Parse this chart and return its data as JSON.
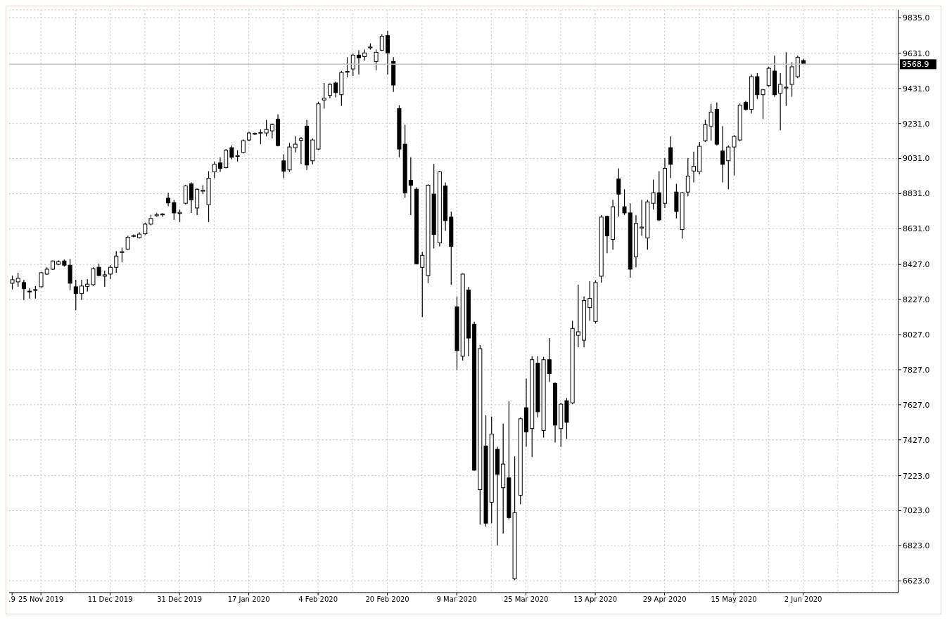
{
  "chart_data": {
    "type": "candlestick",
    "color": "#000000",
    "grid": true,
    "categories": [
      ".9",
      null,
      null,
      null,
      null,
      "25 Nov 2019",
      null,
      null,
      null,
      null,
      null,
      null,
      null,
      null,
      null,
      null,
      null,
      "11 Dec 2019",
      null,
      null,
      null,
      null,
      null,
      null,
      null,
      null,
      null,
      null,
      null,
      "31 Dec 2019",
      null,
      null,
      null,
      null,
      null,
      null,
      null,
      null,
      null,
      null,
      null,
      "17 Jan 2020",
      null,
      null,
      null,
      null,
      null,
      null,
      null,
      null,
      null,
      null,
      null,
      "4 Feb 2020",
      null,
      null,
      null,
      null,
      null,
      null,
      null,
      null,
      null,
      null,
      null,
      "20 Feb 2020",
      null,
      null,
      null,
      null,
      null,
      null,
      null,
      null,
      null,
      null,
      null,
      "9 Mar 2020",
      null,
      null,
      null,
      null,
      null,
      null,
      null,
      null,
      null,
      null,
      null,
      "25 Mar 2020",
      null,
      null,
      null,
      null,
      null,
      null,
      null,
      null,
      null,
      null,
      null,
      "13 Apr 2020",
      null,
      null,
      null,
      null,
      null,
      null,
      null,
      null,
      null,
      null,
      null,
      "29 Apr 2020",
      null,
      null,
      null,
      null,
      null,
      null,
      null,
      null,
      null,
      null,
      null,
      "15 May 2020",
      null,
      null,
      null,
      null,
      null,
      null,
      null,
      null,
      null,
      null,
      null,
      "2 Jun 2020",
      null,
      null,
      null,
      null,
      null,
      null,
      null,
      null,
      null,
      null,
      null,
      null,
      null,
      null,
      null,
      null
    ],
    "ohlc": [
      [
        8320,
        8364,
        8285,
        8340
      ],
      [
        8328,
        8380,
        8300,
        8348
      ],
      [
        8324,
        8340,
        8225,
        8289
      ],
      [
        8275,
        8293,
        8233,
        8272
      ],
      [
        8280,
        8304,
        8233,
        8284
      ],
      [
        8300,
        8385,
        8296,
        8380
      ],
      [
        8372,
        8411,
        8368,
        8400
      ],
      [
        8400,
        8450,
        8396,
        8447
      ],
      [
        8428,
        8450,
        8423,
        8442
      ],
      [
        8447,
        8455,
        8415,
        8423
      ],
      [
        8423,
        8459,
        8281,
        8320
      ],
      [
        8300,
        8340,
        8166,
        8261
      ],
      [
        8261,
        8340,
        8225,
        8304
      ],
      [
        8302,
        8344,
        8273,
        8315
      ],
      [
        8312,
        8411,
        8304,
        8403
      ],
      [
        8411,
        8431,
        8360,
        8364
      ],
      [
        8360,
        8392,
        8300,
        8368
      ],
      [
        8372,
        8423,
        8344,
        8411
      ],
      [
        8411,
        8503,
        8380,
        8475
      ],
      [
        8495,
        8523,
        8439,
        8500
      ],
      [
        8515,
        8590,
        8511,
        8582
      ],
      [
        8588,
        8598,
        8582,
        8592
      ],
      [
        8580,
        8610,
        8575,
        8600
      ],
      [
        8602,
        8665,
        8595,
        8657
      ],
      [
        8657,
        8710,
        8650,
        8689
      ],
      [
        8705,
        8720,
        8700,
        8712
      ],
      [
        8710,
        8720,
        8700,
        8715
      ],
      [
        8805,
        8836,
        8760,
        8778
      ],
      [
        8780,
        8796,
        8681,
        8721
      ],
      [
        8718,
        8740,
        8669,
        8724
      ],
      [
        8776,
        8880,
        8770,
        8875
      ],
      [
        8887,
        8895,
        8721,
        8796
      ],
      [
        8749,
        8860,
        8709,
        8856
      ],
      [
        8845,
        8879,
        8828,
        8850
      ],
      [
        8768,
        8959,
        8669,
        8919
      ],
      [
        8955,
        9014,
        8919,
        8998
      ],
      [
        9006,
        9038,
        8955,
        8975
      ],
      [
        8979,
        9085,
        8975,
        9078
      ],
      [
        9093,
        9105,
        9026,
        9038
      ],
      [
        9043,
        9078,
        9014,
        9048
      ],
      [
        9066,
        9140,
        9060,
        9133
      ],
      [
        9137,
        9185,
        9130,
        9177
      ],
      [
        9170,
        9180,
        9165,
        9175
      ],
      [
        9175,
        9197,
        9113,
        9180
      ],
      [
        9177,
        9252,
        9157,
        9197
      ],
      [
        9189,
        9232,
        9145,
        9224
      ],
      [
        9256,
        9284,
        9100,
        9105
      ],
      [
        9018,
        9054,
        8919,
        8959
      ],
      [
        8966,
        9120,
        8955,
        9097
      ],
      [
        9093,
        9157,
        9066,
        9113
      ],
      [
        9135,
        9153,
        9000,
        9145
      ],
      [
        9216,
        9252,
        8966,
        8994
      ],
      [
        9018,
        9145,
        8998,
        9137
      ],
      [
        9085,
        9355,
        9080,
        9343
      ],
      [
        9365,
        9462,
        9316,
        9375
      ],
      [
        9391,
        9460,
        9375,
        9454
      ],
      [
        9462,
        9470,
        9380,
        9407
      ],
      [
        9395,
        9530,
        9331,
        9522
      ],
      [
        9524,
        9609,
        9494,
        9528
      ],
      [
        9542,
        9629,
        9502,
        9621
      ],
      [
        9621,
        9649,
        9510,
        9605
      ],
      [
        9613,
        9653,
        9589,
        9633
      ],
      [
        9663,
        9688,
        9653,
        9667
      ],
      [
        9585,
        9653,
        9534,
        9637
      ],
      [
        9649,
        9740,
        9645,
        9728
      ],
      [
        9732,
        9760,
        9510,
        9633
      ],
      [
        9585,
        9609,
        9411,
        9450
      ],
      [
        9316,
        9335,
        9038,
        9085
      ],
      [
        9113,
        9224,
        8808,
        8836
      ],
      [
        8907,
        9038,
        8709,
        8879
      ],
      [
        8856,
        8867,
        8427,
        8431
      ],
      [
        8411,
        8499,
        8126,
        8479
      ],
      [
        8364,
        8885,
        8320,
        8879
      ],
      [
        8828,
        9000,
        8518,
        8598
      ],
      [
        8550,
        8960,
        8530,
        8955
      ],
      [
        8875,
        8895,
        8618,
        8677
      ],
      [
        8697,
        8729,
        8312,
        8530
      ],
      [
        8185,
        8245,
        7825,
        7936
      ],
      [
        7904,
        8376,
        7880,
        8372
      ],
      [
        8281,
        8300,
        7904,
        8007
      ],
      [
        8086,
        8100,
        7250,
        7254
      ],
      [
        7143,
        7967,
        6944,
        7947
      ],
      [
        7392,
        7567,
        6932,
        6952
      ],
      [
        7071,
        7559,
        6952,
        7460
      ],
      [
        7373,
        7388,
        6825,
        7230
      ],
      [
        7154,
        7519,
        6893,
        7289
      ],
      [
        7210,
        7646,
        6975,
        6984
      ],
      [
        6635,
        7333,
        6627,
        7012
      ],
      [
        7111,
        7555,
        7060,
        7547
      ],
      [
        7610,
        7777,
        7388,
        7472
      ],
      [
        7491,
        7904,
        7329,
        7884
      ],
      [
        7864,
        7904,
        7555,
        7587
      ],
      [
        7480,
        7900,
        7440,
        7884
      ],
      [
        7884,
        8007,
        7757,
        7805
      ],
      [
        7749,
        7755,
        7412,
        7511
      ],
      [
        7491,
        7638,
        7388,
        7630
      ],
      [
        7650,
        7666,
        7432,
        7527
      ],
      [
        7638,
        8106,
        7630,
        8062
      ],
      [
        8023,
        8312,
        7955,
        8043
      ],
      [
        7995,
        8245,
        7955,
        8221
      ],
      [
        8181,
        8332,
        8106,
        8233
      ],
      [
        8102,
        8336,
        8090,
        8324
      ],
      [
        8360,
        8709,
        8324,
        8697
      ],
      [
        8701,
        8706,
        8491,
        8590
      ],
      [
        8570,
        8796,
        8511,
        8756
      ],
      [
        8915,
        8975,
        8701,
        8828
      ],
      [
        8756,
        8856,
        8709,
        8721
      ],
      [
        8721,
        8776,
        8352,
        8400
      ],
      [
        8471,
        8709,
        8411,
        8661
      ],
      [
        8635,
        8796,
        8590,
        8640
      ],
      [
        8578,
        8796,
        8511,
        8784
      ],
      [
        8776,
        8911,
        8740,
        8836
      ],
      [
        8836,
        8959,
        8673,
        8681
      ],
      [
        8776,
        9034,
        8749,
        8975
      ],
      [
        9093,
        9157,
        8919,
        8998
      ],
      [
        8840,
        8887,
        8689,
        8729
      ],
      [
        8626,
        8840,
        8574,
        8836
      ],
      [
        8840,
        9034,
        8816,
        8931
      ],
      [
        8960,
        9070,
        8895,
        8987
      ],
      [
        8955,
        9125,
        8940,
        9101
      ],
      [
        9133,
        9252,
        9125,
        9224
      ],
      [
        9216,
        9343,
        9133,
        9296
      ],
      [
        9312,
        9351,
        9105,
        9113
      ],
      [
        9074,
        9216,
        8895,
        8998
      ],
      [
        9018,
        9105,
        8856,
        9097
      ],
      [
        9097,
        9165,
        8935,
        9157
      ],
      [
        9137,
        9345,
        9130,
        9335
      ],
      [
        9351,
        9360,
        9305,
        9312
      ],
      [
        9312,
        9510,
        9288,
        9498
      ],
      [
        9498,
        9518,
        9371,
        9395
      ],
      [
        9395,
        9427,
        9256,
        9423
      ],
      [
        9447,
        9554,
        9440,
        9546
      ],
      [
        9530,
        9617,
        9383,
        9395
      ],
      [
        9403,
        9518,
        9193,
        9454
      ],
      [
        9433,
        9637,
        9331,
        9438
      ],
      [
        9454,
        9581,
        9383,
        9554
      ],
      [
        9498,
        9617,
        9490,
        9609
      ],
      [
        9590,
        9600,
        9565,
        9569
      ],
      null,
      null,
      null,
      null,
      null,
      null,
      null,
      null,
      null,
      null,
      null,
      null,
      null,
      null,
      null,
      null
    ],
    "colors": [
      "#ffffff",
      "#ffffff",
      "#000000",
      "#000000",
      "#ffffff",
      "#ffffff",
      "#ffffff",
      "#ffffff",
      "#ffffff",
      "#000000",
      "#000000",
      "#000000",
      "#ffffff",
      "#ffffff",
      "#ffffff",
      "#000000",
      "#ffffff",
      "#ffffff",
      "#ffffff",
      "#ffffff",
      "#ffffff",
      "#ffffff",
      "#ffffff",
      "#ffffff",
      "#ffffff",
      "#ffffff",
      "#ffffff",
      "#000000",
      "#000000",
      "#ffffff",
      "#ffffff",
      "#000000",
      "#ffffff",
      "#ffffff",
      "#ffffff",
      "#ffffff",
      "#000000",
      "#ffffff",
      "#000000",
      "#ffffff",
      "#ffffff",
      "#ffffff",
      "#ffffff",
      "#ffffff",
      "#ffffff",
      "#ffffff",
      "#000000",
      "#000000",
      "#ffffff",
      "#ffffff",
      "#ffffff",
      "#000000",
      "#ffffff",
      "#ffffff",
      "#ffffff",
      "#ffffff",
      "#000000",
      "#ffffff",
      "#ffffff",
      "#ffffff",
      "#000000",
      "#ffffff",
      "#ffffff",
      "#ffffff",
      "#ffffff",
      "#000000",
      "#000000",
      "#000000",
      "#000000",
      "#000000",
      "#000000",
      "#ffffff",
      "#ffffff",
      "#000000",
      "#ffffff",
      "#000000",
      "#000000",
      "#000000",
      "#ffffff",
      "#000000",
      "#000000",
      "#ffffff",
      "#000000",
      "#ffffff",
      "#000000",
      "#ffffff",
      "#000000",
      "#ffffff",
      "#ffffff",
      "#000000",
      "#ffffff",
      "#000000",
      "#ffffff",
      "#000000",
      "#000000",
      "#ffffff",
      "#000000",
      "#ffffff",
      "#ffffff",
      "#ffffff",
      "#ffffff",
      "#ffffff",
      "#ffffff",
      "#000000",
      "#ffffff",
      "#000000",
      "#000000",
      "#000000",
      "#ffffff",
      "#ffffff",
      "#ffffff",
      "#ffffff",
      "#000000",
      "#ffffff",
      "#000000",
      "#000000",
      "#ffffff",
      "#ffffff",
      "#ffffff",
      "#ffffff",
      "#ffffff",
      "#ffffff",
      "#000000",
      "#000000",
      "#ffffff",
      "#ffffff",
      "#ffffff",
      "#000000",
      "#ffffff",
      "#000000",
      "#ffffff",
      "#ffffff",
      "#000000",
      "#ffffff",
      "#ffffff",
      "#ffffff",
      "#ffffff",
      "#000000",
      null,
      null,
      null,
      null,
      null,
      null,
      null,
      null,
      null,
      null,
      null,
      null,
      null,
      null,
      null,
      null
    ],
    "ylim": [
      6556,
      9879
    ],
    "yticks": [
      {
        "value": 6623,
        "label": "6623.0"
      },
      {
        "value": 6823,
        "label": "6823.0"
      },
      {
        "value": 7023,
        "label": "7023.0"
      },
      {
        "value": 7223,
        "label": "7223.0"
      },
      {
        "value": 7427,
        "label": "7427.0"
      },
      {
        "value": 7627,
        "label": "7627.0"
      },
      {
        "value": 7827,
        "label": "7827.0"
      },
      {
        "value": 8027,
        "label": "8027.0"
      },
      {
        "value": 8227,
        "label": "8227.0"
      },
      {
        "value": 8427,
        "label": "8427.0"
      },
      {
        "value": 8631,
        "label": "8631.0"
      },
      {
        "value": 8831,
        "label": "8831.0"
      },
      {
        "value": 9031,
        "label": "9031.0"
      },
      {
        "value": 9231,
        "label": "9231.0"
      },
      {
        "value": 9431,
        "label": "9431.0"
      },
      {
        "value": 9631,
        "label": "9631.0"
      },
      {
        "value": 9835,
        "label": "9835.0"
      }
    ],
    "ref_lines": [
      {
        "axis": "y",
        "value": 9568.9,
        "label": "9568.9",
        "color": "#c0c0c0"
      }
    ]
  }
}
